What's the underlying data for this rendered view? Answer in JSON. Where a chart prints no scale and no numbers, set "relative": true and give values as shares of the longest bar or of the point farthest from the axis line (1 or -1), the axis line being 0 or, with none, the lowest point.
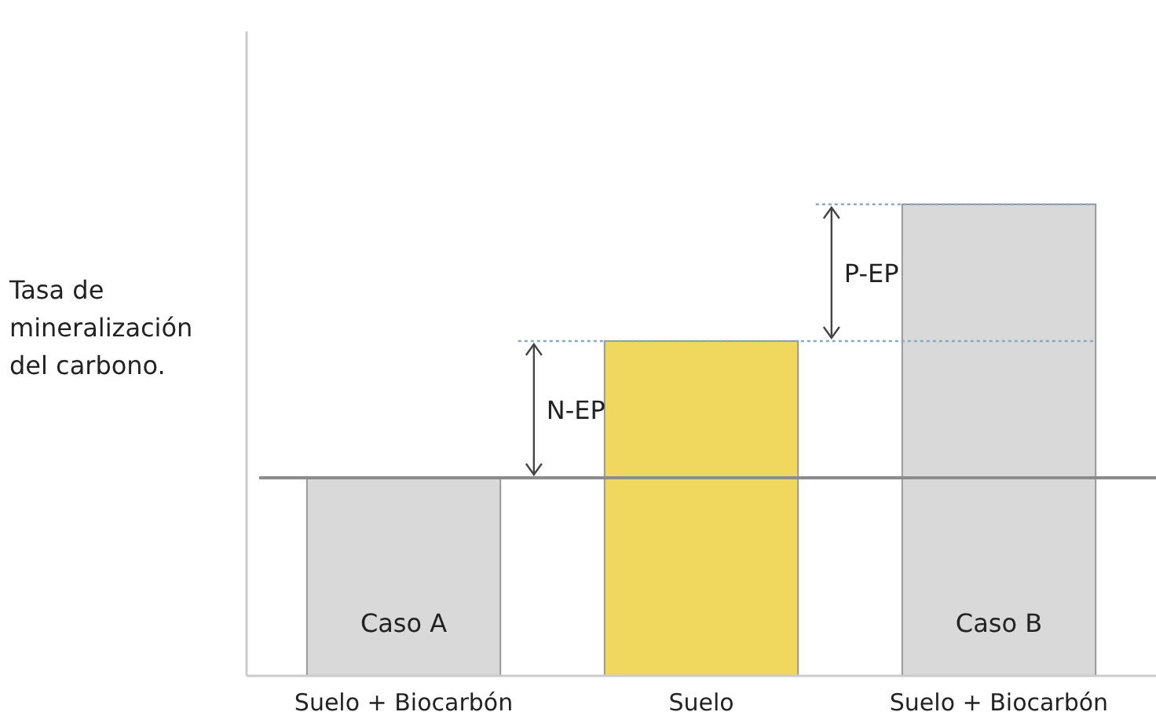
{
  "chart_data": {
    "type": "bar",
    "relative": true,
    "ylabel": "Tasa de mineralización del carbono.",
    "categories": [
      "Suelo + Biocarbón",
      "Suelo",
      "Suelo + Biocarbón"
    ],
    "values": [
      0.42,
      0.71,
      1
    ],
    "colors": [
      "#d9d9d9",
      "#f0d75e",
      "#d9d9d9"
    ],
    "annotations": [
      "N-EP",
      "P-EP",
      "Caso A",
      "Caso B"
    ],
    "ref_lines": [
      {
        "axis": "y",
        "value": 0.42,
        "color": "#8c8c8c",
        "line_style": "solid"
      },
      {
        "axis": "y",
        "value": 0.71,
        "color": "#88aabb",
        "line_style": "dotted"
      },
      {
        "axis": "y",
        "value": 1,
        "color": "#88aabb",
        "line_style": "dotted"
      }
    ]
  }
}
